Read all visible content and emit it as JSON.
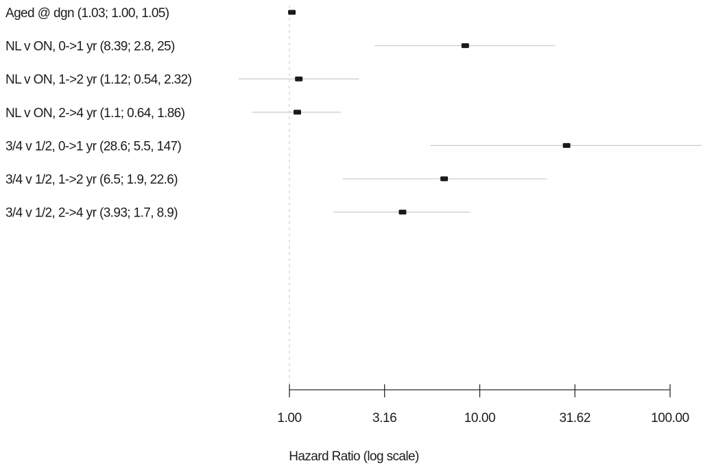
{
  "chart_data": {
    "type": "forest",
    "xscale": "log",
    "xlim": [
      1.0,
      100.0
    ],
    "xticks": [
      1.0,
      3.16,
      10.0,
      31.62,
      100.0
    ],
    "xtick_labels": [
      "1.00",
      "3.16",
      "10.00",
      "31.62",
      "100.00"
    ],
    "xlabel": "Hazard Ratio (log scale)",
    "reference_value": 1.0,
    "rows": [
      {
        "label": "Aged @ dgn (1.03; 1.00, 1.05)",
        "estimate": 1.03,
        "lower": 1.0,
        "upper": 1.05
      },
      {
        "label": "NL v ON, 0->1 yr (8.39; 2.8, 25)",
        "estimate": 8.39,
        "lower": 2.8,
        "upper": 25
      },
      {
        "label": "NL v ON, 1->2 yr (1.12; 0.54, 2.32)",
        "estimate": 1.12,
        "lower": 0.54,
        "upper": 2.32
      },
      {
        "label": "NL v ON, 2->4 yr (1.1; 0.64, 1.86)",
        "estimate": 1.1,
        "lower": 0.64,
        "upper": 1.86
      },
      {
        "label": "3/4 v 1/2, 0->1 yr (28.6; 5.5, 147)",
        "estimate": 28.6,
        "lower": 5.5,
        "upper": 147
      },
      {
        "label": "3/4 v 1/2, 1->2 yr (6.5; 1.9, 22.6)",
        "estimate": 6.5,
        "lower": 1.9,
        "upper": 22.6
      },
      {
        "label": "3/4 v 1/2, 2->4 yr (3.93; 1.7, 8.9)",
        "estimate": 3.93,
        "lower": 1.7,
        "upper": 8.9
      }
    ],
    "grid": false,
    "colors": {
      "point": "#1a1a1a",
      "ci": "#c9d0cc",
      "axis": "#2a2a2a",
      "text": "#1b1b1b"
    }
  }
}
